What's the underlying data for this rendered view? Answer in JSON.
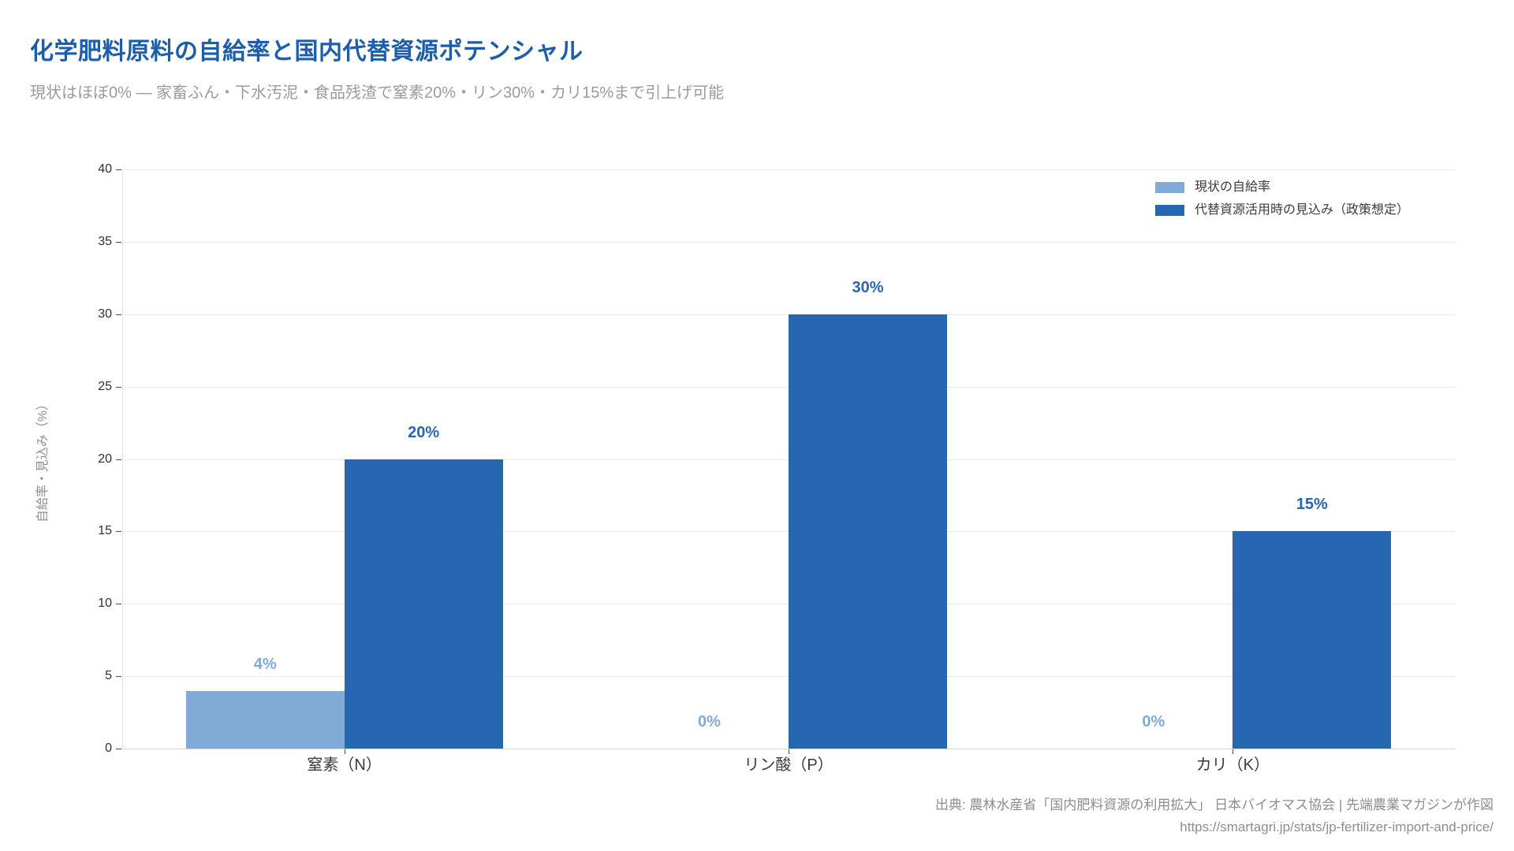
{
  "header": {
    "title": "化学肥料原料の自給率と国内代替資源ポテンシャル",
    "subtitle": "現状はほぼ0% — 家畜ふん・下水汚泥・食品残渣で窒素20%・リン30%・カリ15%まで引上げ可能"
  },
  "chart_data": {
    "type": "bar",
    "categories": [
      "窒素（N）",
      "リン酸（P）",
      "カリ（K）"
    ],
    "series": [
      {
        "name": "現状の自給率",
        "color": "#7fabd6",
        "values": [
          4,
          0,
          0
        ],
        "labels": [
          "4%",
          "0%",
          "0%"
        ]
      },
      {
        "name": "代替資源活用時の見込み（政策想定）",
        "color": "#2766b1",
        "values": [
          20,
          30,
          15
        ],
        "labels": [
          "20%",
          "30%",
          "15%"
        ]
      }
    ],
    "title": "化学肥料原料の自給率と国内代替資源ポテンシャル",
    "xlabel": "",
    "ylabel": "自給率・見込み（%）",
    "ylim": [
      0,
      40
    ],
    "ytick_step": 5,
    "yticks": [
      0,
      5,
      10,
      15,
      20,
      25,
      30,
      35,
      40
    ],
    "grid": true,
    "legend_position": "top-right"
  },
  "footer": {
    "source": "出典: 農林水産省「国内肥料資源の利用拡大」 日本バイオマス協会 | 先端農業マガジンが作図",
    "url": "https://smartagri.jp/stats/jp-fertilizer-import-and-price/"
  },
  "colors": {
    "title_text": "#1c5fa8",
    "subtitle_text": "#9b9b9b",
    "grid_line": "#ebebeb",
    "baseline": "#d6d6d6",
    "spine": "#e3e3e3",
    "tick_mark": "#4a4a4a",
    "tick_text": "#2f2f2f",
    "category_text": "#3a3a3a",
    "legend_text": "#3c3c3c",
    "axis_title_text": "#8f8f8f",
    "footer_text": "#8d8d8d"
  }
}
